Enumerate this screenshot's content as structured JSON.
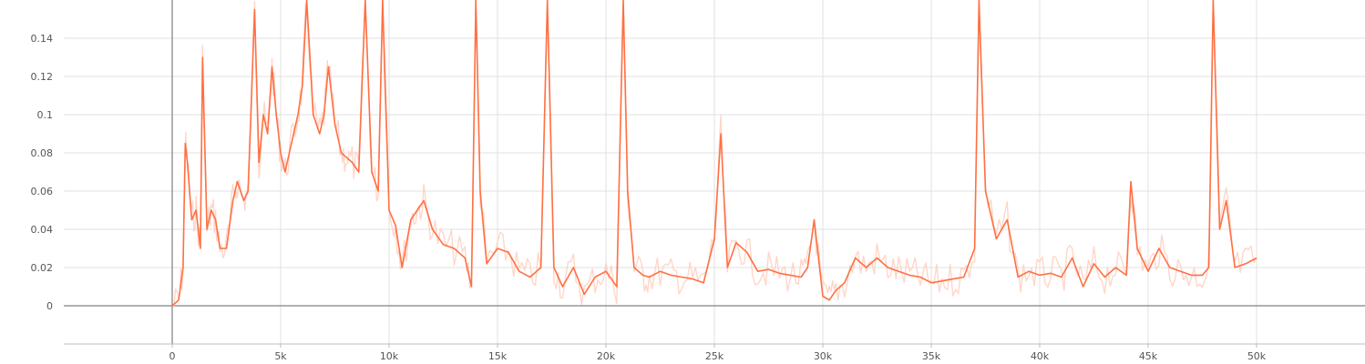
{
  "chart_data": {
    "type": "line",
    "title": "",
    "xlabel": "",
    "ylabel": "",
    "xlim": [
      -5000,
      55000
    ],
    "ylim": [
      -0.02,
      0.16
    ],
    "grid": true,
    "legend": "none",
    "x_ticks": [
      0,
      5000,
      10000,
      15000,
      20000,
      25000,
      30000,
      35000,
      40000,
      45000,
      50000
    ],
    "x_tick_labels": [
      "0",
      "5k",
      "10k",
      "15k",
      "20k",
      "25k",
      "30k",
      "35k",
      "40k",
      "45k",
      "50k"
    ],
    "y_ticks": [
      0,
      0.02,
      0.04,
      0.06,
      0.08,
      0.1,
      0.12,
      0.14
    ],
    "y_tick_labels": [
      "0",
      "0.02",
      "0.04",
      "0.06",
      "0.08",
      "0.1",
      "0.12",
      "0.14"
    ],
    "colors": {
      "smoothed": "#ff7043",
      "raw": "#ffccbc",
      "grid": "#e0e0e0",
      "axis": "#808080"
    },
    "series": [
      {
        "role": "smoothed",
        "x": [
          0,
          300,
          500,
          600,
          700,
          900,
          1100,
          1300,
          1400,
          1600,
          1800,
          2000,
          2200,
          2500,
          2800,
          3000,
          3300,
          3500,
          3800,
          4000,
          4200,
          4400,
          4600,
          4800,
          5000,
          5200,
          5500,
          5800,
          6000,
          6200,
          6500,
          6800,
          7000,
          7200,
          7500,
          7800,
          8000,
          8300,
          8600,
          8900,
          9200,
          9500,
          9700,
          10000,
          10300,
          10600,
          11000,
          11300,
          11600,
          12000,
          12500,
          13000,
          13500,
          13800,
          14000,
          14200,
          14500,
          15000,
          15500,
          16000,
          16500,
          17000,
          17300,
          17600,
          18000,
          18500,
          19000,
          19500,
          20000,
          20500,
          20800,
          21000,
          21300,
          21700,
          22000,
          22500,
          23000,
          23500,
          24000,
          24500,
          25000,
          25300,
          25600,
          26000,
          26500,
          27000,
          27500,
          28000,
          28500,
          29000,
          29300,
          29600,
          30000,
          30300,
          30600,
          31000,
          31500,
          32000,
          32500,
          33000,
          33500,
          34000,
          34500,
          35000,
          35500,
          36000,
          36500,
          37000,
          37200,
          37500,
          38000,
          38500,
          39000,
          39500,
          40000,
          40500,
          41000,
          41500,
          42000,
          42500,
          43000,
          43500,
          44000,
          44200,
          44500,
          45000,
          45500,
          46000,
          46500,
          47000,
          47500,
          47800,
          48000,
          48300,
          48600,
          49000,
          49500,
          50000
        ],
        "values": [
          0,
          0.003,
          0.02,
          0.085,
          0.075,
          0.045,
          0.05,
          0.03,
          0.13,
          0.04,
          0.05,
          0.045,
          0.03,
          0.03,
          0.055,
          0.065,
          0.055,
          0.06,
          0.155,
          0.075,
          0.1,
          0.09,
          0.125,
          0.1,
          0.08,
          0.07,
          0.085,
          0.1,
          0.115,
          0.16,
          0.1,
          0.09,
          0.1,
          0.125,
          0.095,
          0.08,
          0.078,
          0.075,
          0.07,
          0.16,
          0.07,
          0.06,
          0.16,
          0.05,
          0.042,
          0.02,
          0.045,
          0.05,
          0.055,
          0.04,
          0.032,
          0.03,
          0.025,
          0.01,
          0.16,
          0.06,
          0.022,
          0.03,
          0.028,
          0.018,
          0.015,
          0.02,
          0.16,
          0.02,
          0.01,
          0.02,
          0.006,
          0.015,
          0.018,
          0.01,
          0.16,
          0.06,
          0.02,
          0.016,
          0.015,
          0.018,
          0.016,
          0.015,
          0.014,
          0.012,
          0.035,
          0.09,
          0.02,
          0.033,
          0.028,
          0.018,
          0.019,
          0.017,
          0.016,
          0.015,
          0.02,
          0.045,
          0.005,
          0.003,
          0.008,
          0.012,
          0.025,
          0.02,
          0.025,
          0.02,
          0.018,
          0.016,
          0.015,
          0.012,
          0.013,
          0.014,
          0.015,
          0.03,
          0.16,
          0.06,
          0.035,
          0.045,
          0.015,
          0.018,
          0.016,
          0.017,
          0.015,
          0.025,
          0.01,
          0.022,
          0.015,
          0.02,
          0.016,
          0.065,
          0.03,
          0.018,
          0.03,
          0.02,
          0.018,
          0.016,
          0.016,
          0.02,
          0.16,
          0.04,
          0.055,
          0.02,
          0.022,
          0.025
        ]
      }
    ]
  }
}
